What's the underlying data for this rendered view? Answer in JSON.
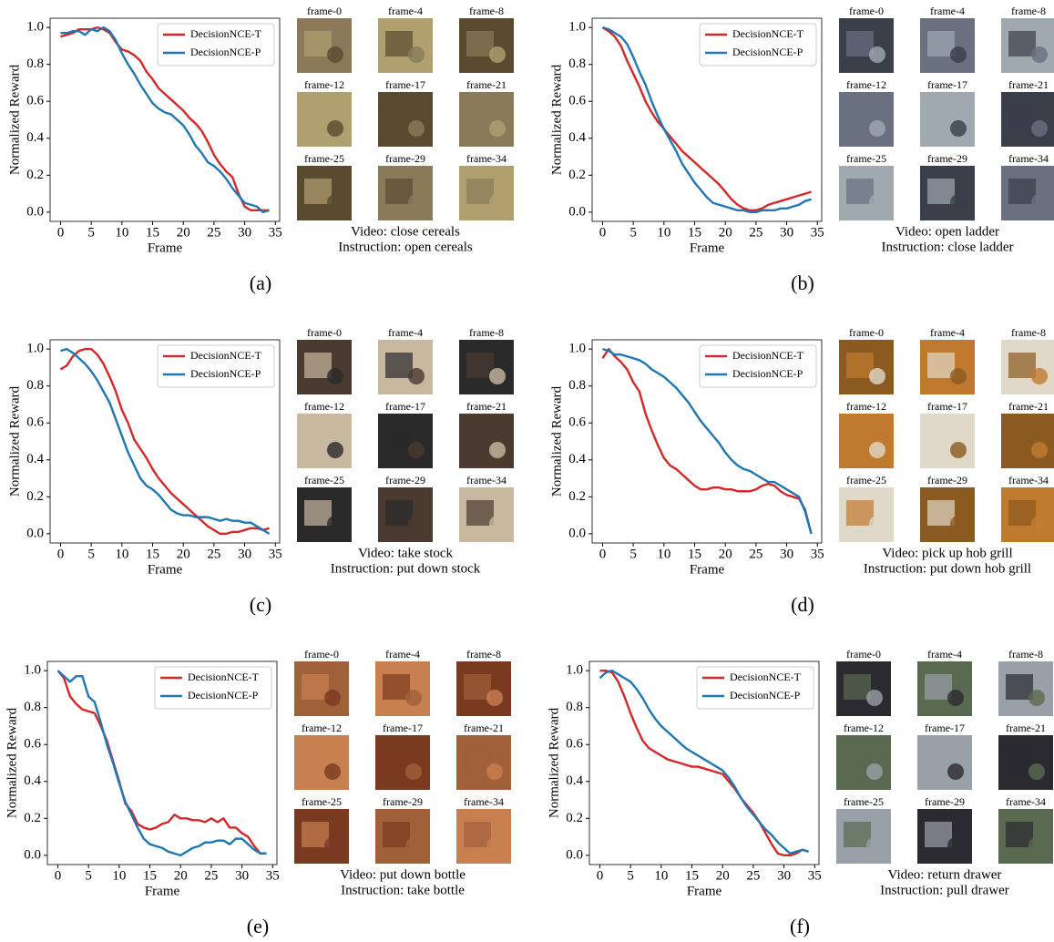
{
  "chart_data": [
    {
      "type": "line",
      "panel": "(a)",
      "xlabel": "Frame",
      "ylabel": "Normalized Reward",
      "x": [
        0,
        1,
        2,
        3,
        4,
        5,
        6,
        7,
        8,
        9,
        10,
        11,
        12,
        13,
        14,
        15,
        16,
        17,
        18,
        19,
        20,
        21,
        22,
        23,
        24,
        25,
        26,
        27,
        28,
        29,
        30,
        31,
        32,
        33,
        34
      ],
      "series": [
        {
          "name": "DecisionNCE-T",
          "color": "#d62728",
          "values": [
            0.95,
            0.96,
            0.97,
            0.99,
            0.99,
            0.99,
            1.0,
            0.99,
            0.97,
            0.92,
            0.88,
            0.87,
            0.85,
            0.82,
            0.76,
            0.72,
            0.67,
            0.64,
            0.61,
            0.58,
            0.55,
            0.51,
            0.48,
            0.44,
            0.38,
            0.31,
            0.26,
            0.22,
            0.19,
            0.1,
            0.03,
            0.01,
            0.01,
            0.01,
            0.01
          ]
        },
        {
          "name": "DecisionNCE-P",
          "color": "#1f77b4",
          "values": [
            0.97,
            0.97,
            0.98,
            0.98,
            0.96,
            0.99,
            0.98,
            1.0,
            0.98,
            0.93,
            0.86,
            0.8,
            0.75,
            0.69,
            0.64,
            0.59,
            0.56,
            0.54,
            0.53,
            0.5,
            0.47,
            0.42,
            0.36,
            0.32,
            0.27,
            0.25,
            0.22,
            0.18,
            0.13,
            0.09,
            0.05,
            0.04,
            0.03,
            0.0,
            0.01
          ]
        }
      ],
      "xlim": [
        -1.7,
        35.7
      ],
      "ylim": [
        -0.05,
        1.05
      ],
      "xticks": [
        0,
        5,
        10,
        15,
        20,
        25,
        30,
        35
      ],
      "yticks": [
        {
          "value": 0,
          "label": "0.0"
        },
        0.2,
        0.4,
        0.6,
        0.8,
        {
          "value": 1,
          "label": "1.0"
        }
      ],
      "legend": "upper right",
      "frames": [
        "frame-0",
        "frame-4",
        "frame-8",
        "frame-12",
        "frame-17",
        "frame-21",
        "frame-25",
        "frame-29",
        "frame-34"
      ],
      "video": "Video: close cereals",
      "instruction": "Instruction: open cereals"
    },
    {
      "type": "line",
      "panel": "(b)",
      "xlabel": "Frame",
      "ylabel": "Normalized Reward",
      "x": [
        0,
        1,
        2,
        3,
        4,
        5,
        6,
        7,
        8,
        9,
        10,
        11,
        12,
        13,
        14,
        15,
        16,
        17,
        18,
        19,
        20,
        21,
        22,
        23,
        24,
        25,
        26,
        27,
        28,
        29,
        30,
        31,
        32,
        33,
        34
      ],
      "series": [
        {
          "name": "DecisionNCE-T",
          "color": "#d62728",
          "values": [
            1.0,
            0.98,
            0.95,
            0.9,
            0.82,
            0.75,
            0.68,
            0.6,
            0.54,
            0.49,
            0.45,
            0.41,
            0.37,
            0.33,
            0.3,
            0.27,
            0.24,
            0.21,
            0.18,
            0.15,
            0.11,
            0.07,
            0.04,
            0.02,
            0.01,
            0.01,
            0.02,
            0.04,
            0.05,
            0.06,
            0.07,
            0.08,
            0.09,
            0.1,
            0.11
          ]
        },
        {
          "name": "DecisionNCE-P",
          "color": "#1f77b4",
          "values": [
            1.0,
            0.99,
            0.97,
            0.95,
            0.91,
            0.84,
            0.76,
            0.69,
            0.6,
            0.52,
            0.45,
            0.39,
            0.33,
            0.26,
            0.21,
            0.16,
            0.12,
            0.08,
            0.05,
            0.04,
            0.03,
            0.02,
            0.01,
            0.01,
            0.0,
            0.0,
            0.01,
            0.01,
            0.01,
            0.02,
            0.02,
            0.03,
            0.04,
            0.06,
            0.07
          ]
        }
      ],
      "xlim": [
        -1.7,
        35.7
      ],
      "ylim": [
        -0.05,
        1.05
      ],
      "xticks": [
        0,
        5,
        10,
        15,
        20,
        25,
        30,
        35
      ],
      "yticks": [
        {
          "value": 0,
          "label": "0.0"
        },
        0.2,
        0.4,
        0.6,
        0.8,
        {
          "value": 1,
          "label": "1.0"
        }
      ],
      "legend": "upper right",
      "frames": [
        "frame-0",
        "frame-4",
        "frame-8",
        "frame-12",
        "frame-17",
        "frame-21",
        "frame-25",
        "frame-29",
        "frame-34"
      ],
      "video": "Video: open ladder",
      "instruction": "Instruction: close ladder"
    },
    {
      "type": "line",
      "panel": "(c)",
      "xlabel": "Frame",
      "ylabel": "Normalized Reward",
      "x": [
        0,
        1,
        2,
        3,
        4,
        5,
        6,
        7,
        8,
        9,
        10,
        11,
        12,
        13,
        14,
        15,
        16,
        17,
        18,
        19,
        20,
        21,
        22,
        23,
        24,
        25,
        26,
        27,
        28,
        29,
        30,
        31,
        32,
        33,
        34
      ],
      "series": [
        {
          "name": "DecisionNCE-T",
          "color": "#d62728",
          "values": [
            0.89,
            0.91,
            0.96,
            0.99,
            1.0,
            1.0,
            0.97,
            0.92,
            0.85,
            0.77,
            0.67,
            0.6,
            0.51,
            0.46,
            0.41,
            0.35,
            0.3,
            0.26,
            0.22,
            0.19,
            0.16,
            0.13,
            0.1,
            0.07,
            0.04,
            0.02,
            0.0,
            0.0,
            0.01,
            0.01,
            0.02,
            0.03,
            0.03,
            0.02,
            0.03
          ]
        },
        {
          "name": "DecisionNCE-P",
          "color": "#1f77b4",
          "values": [
            0.99,
            1.0,
            0.98,
            0.95,
            0.92,
            0.88,
            0.83,
            0.77,
            0.71,
            0.62,
            0.53,
            0.44,
            0.37,
            0.3,
            0.26,
            0.24,
            0.21,
            0.17,
            0.13,
            0.11,
            0.1,
            0.1,
            0.09,
            0.09,
            0.09,
            0.08,
            0.07,
            0.08,
            0.07,
            0.07,
            0.06,
            0.06,
            0.04,
            0.02,
            0.0
          ]
        }
      ],
      "xlim": [
        -1.7,
        35.7
      ],
      "ylim": [
        -0.05,
        1.05
      ],
      "xticks": [
        0,
        5,
        10,
        15,
        20,
        25,
        30,
        35
      ],
      "yticks": [
        {
          "value": 0,
          "label": "0.0"
        },
        0.2,
        0.4,
        0.6,
        0.8,
        {
          "value": 1,
          "label": "1.0"
        }
      ],
      "legend": "upper right",
      "frames": [
        "frame-0",
        "frame-4",
        "frame-8",
        "frame-12",
        "frame-17",
        "frame-21",
        "frame-25",
        "frame-29",
        "frame-34"
      ],
      "video": "Video: take stock",
      "instruction": "Instruction: put down stock"
    },
    {
      "type": "line",
      "panel": "(d)",
      "xlabel": "Frame",
      "ylabel": "Normalized Reward",
      "x": [
        0,
        1,
        2,
        3,
        4,
        5,
        6,
        7,
        8,
        9,
        10,
        11,
        12,
        13,
        14,
        15,
        16,
        17,
        18,
        19,
        20,
        21,
        22,
        23,
        24,
        25,
        26,
        27,
        28,
        29,
        30,
        31,
        32,
        33,
        34
      ],
      "series": [
        {
          "name": "DecisionNCE-T",
          "color": "#d62728",
          "values": [
            0.95,
            1.0,
            0.96,
            0.93,
            0.89,
            0.82,
            0.77,
            0.65,
            0.56,
            0.48,
            0.41,
            0.37,
            0.35,
            0.32,
            0.29,
            0.26,
            0.24,
            0.24,
            0.25,
            0.25,
            0.24,
            0.24,
            0.23,
            0.23,
            0.23,
            0.24,
            0.26,
            0.27,
            0.26,
            0.23,
            0.21,
            0.2,
            0.19,
            0.13,
            0.0
          ]
        },
        {
          "name": "DecisionNCE-P",
          "color": "#1f77b4",
          "values": [
            1.0,
            0.99,
            0.97,
            0.97,
            0.96,
            0.95,
            0.94,
            0.92,
            0.89,
            0.87,
            0.85,
            0.82,
            0.79,
            0.75,
            0.71,
            0.66,
            0.61,
            0.57,
            0.53,
            0.49,
            0.44,
            0.4,
            0.37,
            0.35,
            0.34,
            0.32,
            0.3,
            0.28,
            0.28,
            0.26,
            0.24,
            0.22,
            0.2,
            0.12,
            0.0
          ]
        }
      ],
      "xlim": [
        -1.7,
        35.7
      ],
      "ylim": [
        -0.05,
        1.05
      ],
      "xticks": [
        0,
        5,
        10,
        15,
        20,
        25,
        30,
        35
      ],
      "yticks": [
        {
          "value": 0,
          "label": "0.0"
        },
        0.2,
        0.4,
        0.6,
        0.8,
        {
          "value": 1,
          "label": "1.0"
        }
      ],
      "legend": "upper right",
      "frames": [
        "frame-0",
        "frame-4",
        "frame-8",
        "frame-12",
        "frame-17",
        "frame-21",
        "frame-25",
        "frame-29",
        "frame-34"
      ],
      "video": "Video: pick up hob grill",
      "instruction": "Instruction: put down hob grill"
    },
    {
      "type": "line",
      "panel": "(e)",
      "xlabel": "Frame",
      "ylabel": "Normalized Reward",
      "x": [
        0,
        1,
        2,
        3,
        4,
        5,
        6,
        7,
        8,
        9,
        10,
        11,
        12,
        13,
        14,
        15,
        16,
        17,
        18,
        19,
        20,
        21,
        22,
        23,
        24,
        25,
        26,
        27,
        28,
        29,
        30,
        31,
        32,
        33,
        34
      ],
      "series": [
        {
          "name": "DecisionNCE-T",
          "color": "#d62728",
          "values": [
            1.0,
            0.96,
            0.86,
            0.82,
            0.79,
            0.78,
            0.77,
            0.7,
            0.62,
            0.51,
            0.4,
            0.28,
            0.24,
            0.17,
            0.15,
            0.14,
            0.15,
            0.17,
            0.18,
            0.22,
            0.2,
            0.2,
            0.19,
            0.19,
            0.18,
            0.2,
            0.18,
            0.2,
            0.15,
            0.15,
            0.12,
            0.1,
            0.05,
            0.01,
            0.01
          ]
        },
        {
          "name": "DecisionNCE-P",
          "color": "#1f77b4",
          "values": [
            1.0,
            0.97,
            0.94,
            0.97,
            0.97,
            0.86,
            0.83,
            0.72,
            0.6,
            0.5,
            0.39,
            0.29,
            0.22,
            0.15,
            0.09,
            0.06,
            0.05,
            0.04,
            0.02,
            0.01,
            0.0,
            0.02,
            0.04,
            0.05,
            0.07,
            0.07,
            0.08,
            0.08,
            0.06,
            0.09,
            0.09,
            0.06,
            0.03,
            0.01,
            0.01
          ]
        }
      ],
      "xlim": [
        -1.7,
        35.7
      ],
      "ylim": [
        -0.05,
        1.05
      ],
      "xticks": [
        0,
        5,
        10,
        15,
        20,
        25,
        30,
        35
      ],
      "yticks": [
        {
          "value": 0,
          "label": "0.0"
        },
        0.2,
        0.4,
        0.6,
        0.8,
        {
          "value": 1,
          "label": "1.0"
        }
      ],
      "legend": "upper right",
      "frames": [
        "frame-0",
        "frame-4",
        "frame-8",
        "frame-12",
        "frame-17",
        "frame-21",
        "frame-25",
        "frame-29",
        "frame-34"
      ],
      "video": "Video: put down bottle",
      "instruction": "Instruction: take bottle"
    },
    {
      "type": "line",
      "panel": "(f)",
      "xlabel": "Frame",
      "ylabel": "Normalized Reward",
      "x": [
        0,
        1,
        2,
        3,
        4,
        5,
        6,
        7,
        8,
        9,
        10,
        11,
        12,
        13,
        14,
        15,
        16,
        17,
        18,
        19,
        20,
        21,
        22,
        23,
        24,
        25,
        26,
        27,
        28,
        29,
        30,
        31,
        32,
        33,
        34
      ],
      "series": [
        {
          "name": "DecisionNCE-T",
          "color": "#d62728",
          "values": [
            1.0,
            1.0,
            0.99,
            0.94,
            0.86,
            0.77,
            0.69,
            0.62,
            0.58,
            0.56,
            0.54,
            0.52,
            0.51,
            0.5,
            0.49,
            0.48,
            0.48,
            0.47,
            0.46,
            0.45,
            0.44,
            0.4,
            0.36,
            0.31,
            0.27,
            0.23,
            0.18,
            0.12,
            0.06,
            0.01,
            0.0,
            0.0,
            0.01,
            0.03,
            0.02
          ]
        },
        {
          "name": "DecisionNCE-P",
          "color": "#1f77b4",
          "values": [
            0.96,
            0.99,
            1.0,
            0.98,
            0.96,
            0.94,
            0.9,
            0.85,
            0.79,
            0.74,
            0.7,
            0.67,
            0.64,
            0.61,
            0.58,
            0.56,
            0.54,
            0.52,
            0.5,
            0.48,
            0.46,
            0.42,
            0.37,
            0.31,
            0.26,
            0.22,
            0.18,
            0.14,
            0.11,
            0.07,
            0.04,
            0.01,
            0.02,
            0.03,
            0.02
          ]
        }
      ],
      "xlim": [
        -1.7,
        35.7
      ],
      "ylim": [
        -0.05,
        1.05
      ],
      "xticks": [
        0,
        5,
        10,
        15,
        20,
        25,
        30,
        35
      ],
      "yticks": [
        {
          "value": 0,
          "label": "0.0"
        },
        0.2,
        0.4,
        0.6,
        0.8,
        {
          "value": 1,
          "label": "1.0"
        }
      ],
      "legend": "upper right",
      "frames": [
        "frame-0",
        "frame-4",
        "frame-8",
        "frame-12",
        "frame-17",
        "frame-21",
        "frame-25",
        "frame-29",
        "frame-34"
      ],
      "video": "Video: return drawer",
      "instruction": "Instruction: pull drawer"
    }
  ]
}
